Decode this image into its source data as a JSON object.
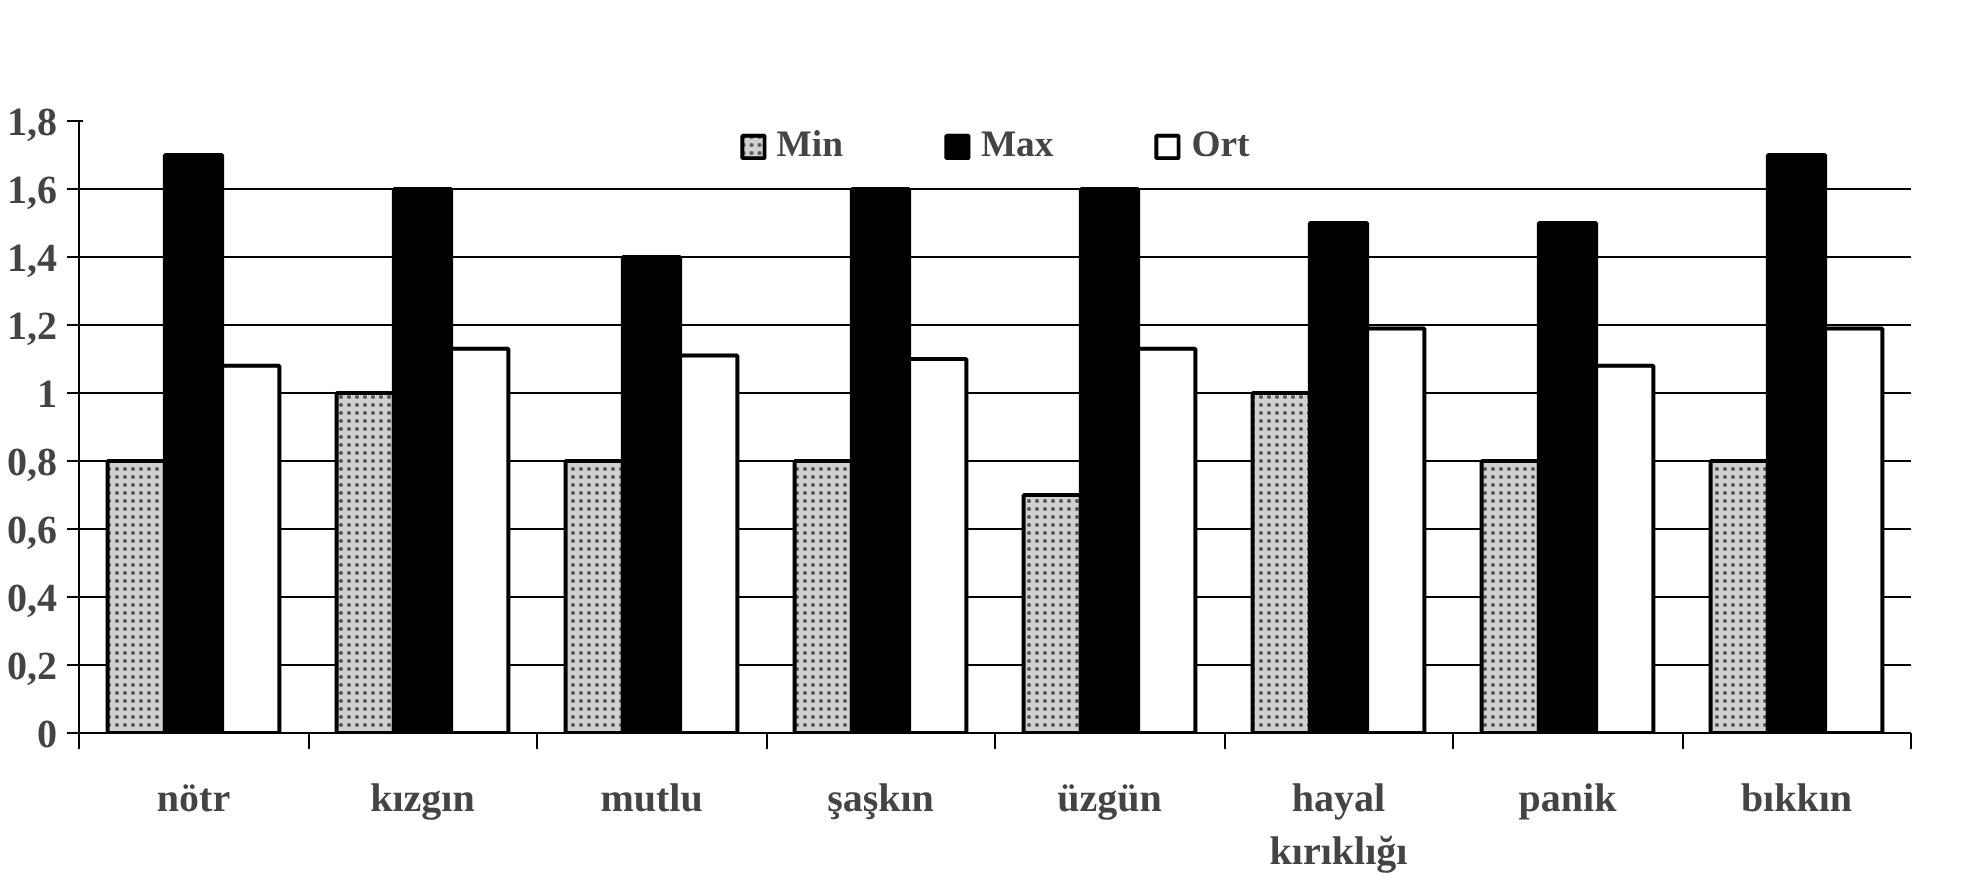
{
  "chart_data": {
    "type": "bar",
    "categories": [
      "nötr",
      "kızgın",
      "mutlu",
      "şaşkın",
      "üzgün",
      "hayal\nkırıklığı",
      "panik",
      "bıkkın"
    ],
    "series": [
      {
        "name": "Min",
        "color": "#d0d0d0",
        "values": [
          0.8,
          1.0,
          0.8,
          0.8,
          0.7,
          1.0,
          0.8,
          0.8
        ]
      },
      {
        "name": "Max",
        "color": "#000000",
        "values": [
          1.7,
          1.6,
          1.4,
          1.6,
          1.6,
          1.5,
          1.5,
          1.7
        ]
      },
      {
        "name": "Ort",
        "color": "#ffffff",
        "values": [
          1.08,
          1.13,
          1.11,
          1.1,
          1.13,
          1.19,
          1.08,
          1.19
        ]
      }
    ],
    "ylim": [
      0,
      1.8
    ],
    "yticks": [
      0,
      {
        "value": 0.2,
        "label": "0,2"
      },
      {
        "value": 0.4,
        "label": "0,4"
      },
      {
        "value": 0.6,
        "label": "0,6"
      },
      {
        "value": 0.8,
        "label": "0,8"
      },
      1,
      {
        "value": 1.2,
        "label": "1,2"
      },
      {
        "value": 1.4,
        "label": "1,4"
      },
      {
        "value": 1.6,
        "label": "1,6"
      },
      {
        "value": 1.8,
        "label": "1,8"
      }
    ],
    "grid": "y",
    "legend": "top"
  }
}
